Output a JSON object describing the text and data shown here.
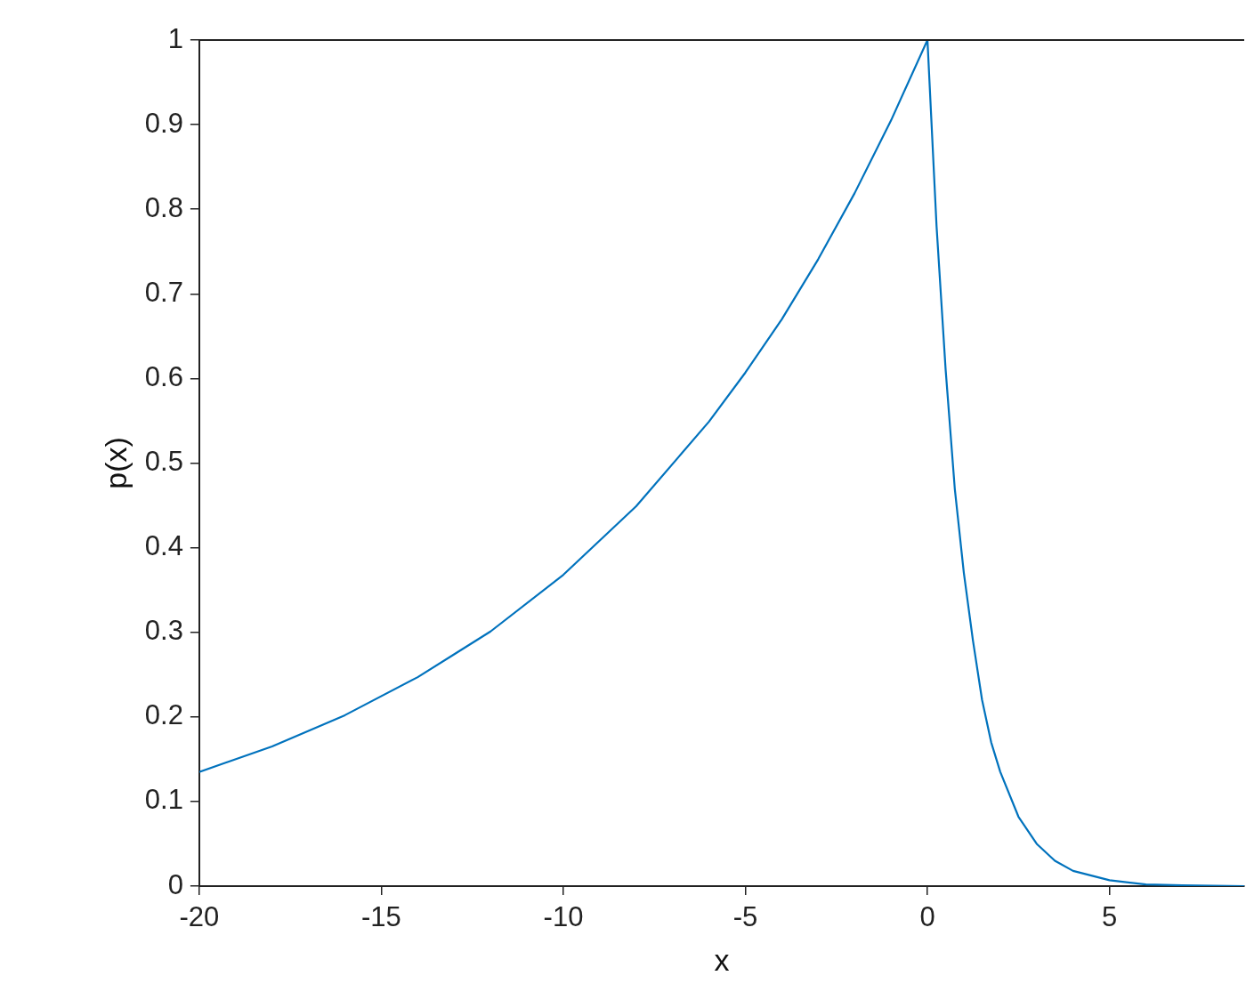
{
  "chart_data": {
    "type": "line",
    "xlabel": "x",
    "ylabel": "p(x)",
    "xlim": [
      -20,
      8.7
    ],
    "xticks": [
      -20,
      -15,
      -10,
      -5,
      0,
      5
    ],
    "ylim": [
      0,
      1
    ],
    "yticks": [
      0,
      0.1,
      0.2,
      0.3,
      0.4,
      0.5,
      0.6,
      0.7,
      0.8,
      0.9,
      1
    ],
    "grid": false,
    "legend": false,
    "marker": "none",
    "line_style": "solid",
    "series": [
      {
        "color": "#0072bd",
        "x": [
          -20,
          -18,
          -16,
          -14,
          -12,
          -10,
          -8,
          -6,
          -5,
          -4,
          -3,
          -2,
          -1,
          0,
          0.25,
          0.5,
          0.75,
          1,
          1.25,
          1.5,
          1.75,
          2,
          2.5,
          3,
          3.5,
          4,
          5,
          6,
          7,
          8.7
        ],
        "values": [
          0.135,
          0.165,
          0.202,
          0.247,
          0.301,
          0.368,
          0.449,
          0.549,
          0.607,
          0.67,
          0.741,
          0.819,
          0.905,
          1,
          0.78,
          0.61,
          0.47,
          0.37,
          0.29,
          0.22,
          0.17,
          0.135,
          0.082,
          0.05,
          0.03,
          0.018,
          0.007,
          0.002,
          0.001,
          0
        ]
      }
    ]
  }
}
